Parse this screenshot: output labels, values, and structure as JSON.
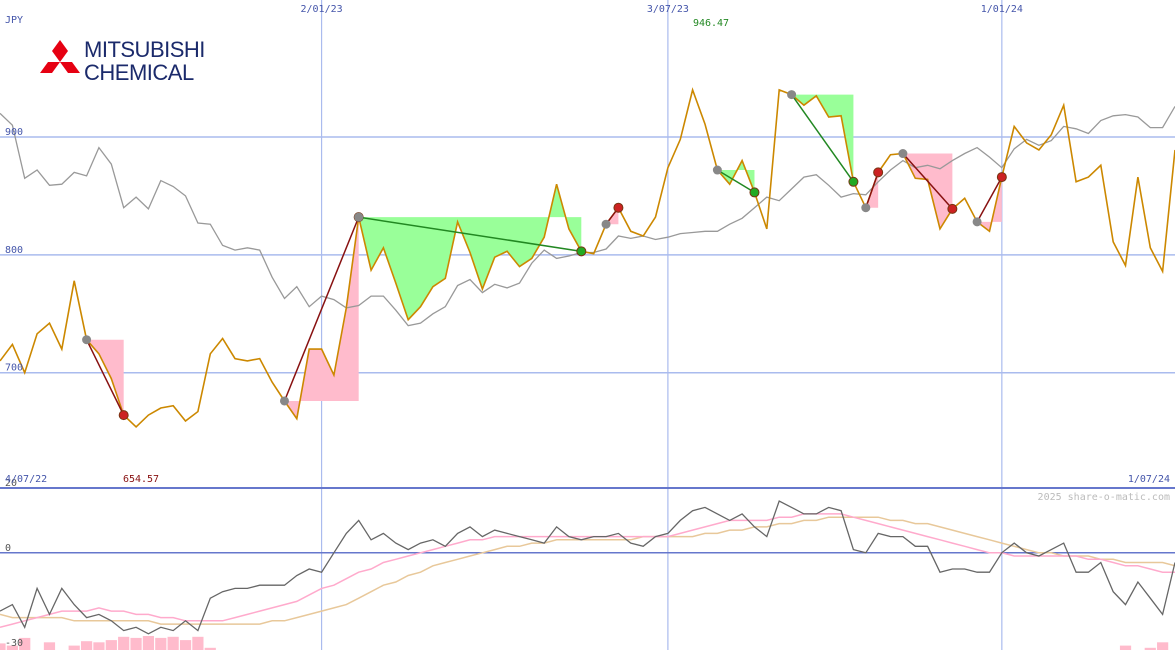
{
  "chart_data": [
    {
      "type": "line",
      "currency": "JPY",
      "x_tick_labels": [
        "2/01/23",
        "3/07/23",
        "1/01/24"
      ],
      "range_start": "4/07/22",
      "range_end": "1/07/24",
      "y_tick_labels": [
        "700",
        "800",
        "900"
      ],
      "ylim": [
        603,
        1001
      ],
      "max_label": "946.47",
      "min_label": "654.57",
      "series": [
        {
          "values": [
            710,
            724,
            700,
            733,
            742,
            720,
            778,
            728,
            716,
            695,
            664,
            654,
            664,
            670,
            672,
            659,
            667,
            716,
            729,
            712,
            710,
            712,
            692,
            676,
            661,
            720,
            720,
            698,
            755,
            832,
            787,
            806,
            776,
            745,
            756,
            773,
            780,
            828,
            802,
            771,
            798,
            803,
            790,
            797,
            815,
            860,
            822,
            803,
            801,
            826,
            840,
            820,
            816,
            832,
            874,
            898,
            940,
            911,
            872,
            860,
            880,
            853,
            822,
            940,
            936,
            927,
            935,
            917,
            918,
            862,
            840,
            870,
            885,
            886,
            865,
            864,
            822,
            839,
            848,
            828,
            820,
            866,
            909,
            895,
            889,
            902,
            927,
            862,
            866,
            876,
            811,
            791,
            866,
            806,
            786,
            889
          ]
        },
        {
          "values": [
            920,
            910,
            865,
            872,
            859,
            860,
            870,
            867,
            891,
            877,
            840,
            849,
            839,
            863,
            858,
            850,
            827,
            826,
            808,
            804,
            806,
            804,
            781,
            763,
            773,
            756,
            765,
            762,
            755,
            757,
            765,
            765,
            753,
            740,
            742,
            750,
            756,
            774,
            779,
            768,
            775,
            772,
            776,
            793,
            804,
            797,
            799,
            802,
            802,
            805,
            816,
            814,
            816,
            813,
            815,
            818,
            819,
            820,
            820,
            826,
            831,
            840,
            849,
            846,
            856,
            866,
            868,
            859,
            849,
            852,
            851,
            862,
            872,
            880,
            874,
            876,
            873,
            880,
            886,
            891,
            883,
            874,
            890,
            898,
            893,
            897,
            909,
            907,
            903,
            914,
            918,
            919,
            917,
            908,
            908,
            926
          ]
        }
      ]
    },
    {
      "type": "line",
      "y_tick_labels": [
        "20",
        "0",
        "-30"
      ],
      "ylim": [
        -30,
        20
      ],
      "series": [
        {
          "values": [
            -18,
            -16,
            -23,
            -11,
            -19,
            -11,
            -16,
            -20,
            -19,
            -21,
            -24,
            -23,
            -25,
            -23,
            -24,
            -21,
            -24,
            -14,
            -12,
            -11,
            -11,
            -10,
            -10,
            -10,
            -7,
            -5,
            -6,
            0,
            6,
            10,
            4,
            6,
            3,
            1,
            3,
            4,
            2,
            6,
            8,
            5,
            7,
            6,
            5,
            4,
            3,
            8,
            5,
            4,
            5,
            5,
            6,
            3,
            2,
            5,
            6,
            10,
            13,
            14,
            12,
            10,
            12,
            8,
            5,
            16,
            14,
            12,
            12,
            14,
            13,
            1,
            0,
            6,
            5,
            5,
            2,
            2,
            -6,
            -5,
            -5,
            -6,
            -6,
            0,
            3,
            0,
            -1,
            1,
            3,
            -6,
            -6,
            -3,
            -12,
            -16,
            -9,
            -14,
            -19,
            -3
          ]
        },
        {
          "values": [
            -23,
            -22,
            -21,
            -20,
            -19,
            -18,
            -18,
            -18,
            -17,
            -18,
            -18,
            -19,
            -19,
            -20,
            -20,
            -21,
            -21,
            -21,
            -21,
            -20,
            -19,
            -18,
            -17,
            -16,
            -15,
            -13,
            -11,
            -10,
            -8,
            -6,
            -5,
            -3,
            -2,
            -1,
            0,
            1,
            2,
            3,
            4,
            4,
            5,
            5,
            5,
            5,
            5,
            5,
            5,
            5,
            5,
            5,
            5,
            5,
            5,
            5,
            5,
            6,
            7,
            8,
            9,
            10,
            10,
            10,
            10,
            11,
            11,
            12,
            12,
            12,
            12,
            11,
            10,
            9,
            8,
            7,
            6,
            5,
            4,
            3,
            2,
            1,
            0,
            0,
            -1,
            -1,
            -1,
            -1,
            -1,
            -1,
            -2,
            -2,
            -3,
            -4,
            -4,
            -5,
            -6,
            -6
          ]
        },
        {
          "values": [
            -19,
            -20,
            -20,
            -20,
            -20,
            -20,
            -21,
            -21,
            -21,
            -21,
            -21,
            -21,
            -21,
            -22,
            -22,
            -22,
            -22,
            -22,
            -22,
            -22,
            -22,
            -22,
            -21,
            -21,
            -20,
            -19,
            -18,
            -17,
            -16,
            -14,
            -12,
            -10,
            -9,
            -7,
            -6,
            -4,
            -3,
            -2,
            -1,
            0,
            1,
            2,
            2,
            3,
            3,
            4,
            4,
            4,
            4,
            4,
            4,
            4,
            5,
            5,
            5,
            5,
            5,
            6,
            6,
            7,
            7,
            8,
            8,
            9,
            9,
            10,
            10,
            11,
            11,
            11,
            11,
            11,
            10,
            10,
            9,
            9,
            8,
            7,
            6,
            5,
            4,
            3,
            2,
            1,
            0,
            0,
            -1,
            -1,
            -1,
            -2,
            -2,
            -3,
            -3,
            -3,
            -3,
            -4
          ]
        }
      ]
    }
  ],
  "watermark": "2025 share-o-matic.com",
  "logo": {
    "line1": "MITSUBISHI",
    "line2": "CHEMICAL",
    "color": "#e60012"
  },
  "colors": {
    "price": "#cc8800",
    "average": "#999999",
    "momentum": "#666666",
    "signal_fast": "#ffaacc",
    "signal_slow": "#e8c89a",
    "gain_fill": "#99ff99",
    "loss_fill": "#ffbbcc",
    "grid": "#aabbee"
  }
}
